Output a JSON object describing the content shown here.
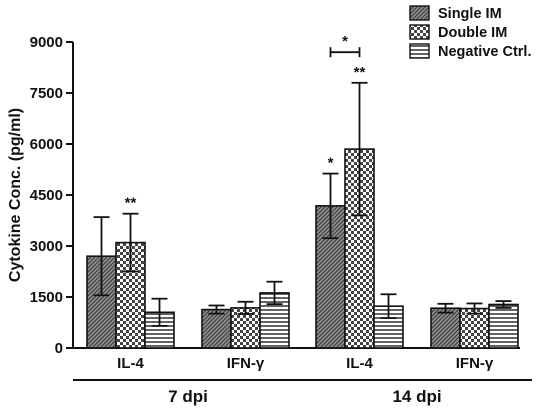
{
  "chart_data": {
    "type": "bar",
    "ylabel": "Cytokine Conc. (pg/ml)",
    "ylim": [
      0,
      9000
    ],
    "yticks": [
      "0",
      "1500",
      "3000",
      "4500",
      "6000",
      "7500",
      "9000"
    ],
    "yticks_values": [
      0,
      1500,
      3000,
      4500,
      6000,
      7500,
      9000
    ],
    "groups": [
      {
        "time": "7 dpi",
        "categories": [
          {
            "label": "IL-4",
            "values": [
              2700,
              3100,
              1050
            ],
            "errors": [
              1150,
              850,
              400
            ],
            "sig": [
              "",
              "**",
              ""
            ]
          },
          {
            "label": "IFN-γ",
            "values": [
              1130,
              1180,
              1620
            ],
            "errors": [
              120,
              180,
              330
            ],
            "sig": [
              "",
              "",
              ""
            ]
          }
        ]
      },
      {
        "time": "14 dpi",
        "categories": [
          {
            "label": "IL-4",
            "values": [
              4180,
              5850,
              1230
            ],
            "errors": [
              950,
              1950,
              350
            ],
            "sig": [
              "*",
              "**",
              ""
            ]
          },
          {
            "label": "IFN-γ",
            "values": [
              1170,
              1160,
              1280
            ],
            "errors": [
              130,
              150,
              100
            ],
            "sig": [
              "",
              "",
              ""
            ]
          }
        ]
      }
    ],
    "series": [
      {
        "name": "Single IM",
        "pattern": "diagonal"
      },
      {
        "name": "Double IM",
        "pattern": "checker"
      },
      {
        "name": "Negative Ctrl.",
        "pattern": "horizontal"
      }
    ],
    "bracket": {
      "label": "*",
      "group": 1,
      "category": 0,
      "from_series": 0,
      "to_series": 1,
      "y": 8700
    },
    "legend_position": "top-right",
    "colors": {
      "fill": "#8a8a8a",
      "line": "#111111",
      "background": "#ffffff"
    }
  }
}
